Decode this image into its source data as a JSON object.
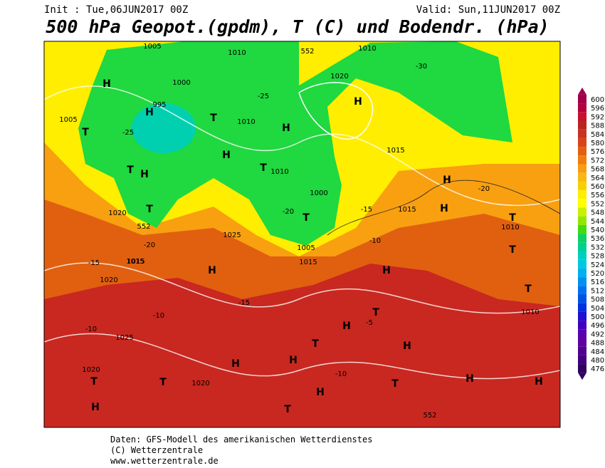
{
  "header": {
    "init": "Init : Tue,06JUN2017 00Z",
    "valid": "Valid: Sun,11JUN2017 00Z",
    "title": "500 hPa Geopot.(gpdm), T (C) und Bodendr. (hPa)"
  },
  "footer": [
    "Daten: GFS-Modell des amerikanischen Wetterdienstes",
    "(C) Wetterzentrale",
    "www.wetterzentrale.de"
  ],
  "colorbar": {
    "levels": [
      600,
      596,
      592,
      588,
      584,
      580,
      576,
      572,
      568,
      564,
      560,
      556,
      552,
      548,
      544,
      540,
      536,
      532,
      528,
      524,
      520,
      516,
      512,
      508,
      504,
      500,
      496,
      492,
      488,
      484,
      480,
      476
    ],
    "colors": [
      "#a0004a",
      "#b4003a",
      "#c81030",
      "#b82420",
      "#c83220",
      "#d84418",
      "#e06010",
      "#f07c10",
      "#f89c10",
      "#f8b810",
      "#f8d000",
      "#ffee00",
      "#ffff00",
      "#c8f000",
      "#90e800",
      "#40dc10",
      "#10d060",
      "#00d090",
      "#00d0c0",
      "#00c8e0",
      "#00b0f0",
      "#0090f0",
      "#0070f0",
      "#0050e8",
      "#0030e0",
      "#2010d0",
      "#4000c0",
      "#5800b0",
      "#6000a0",
      "#500090",
      "#400080",
      "#300060"
    ]
  },
  "map": {
    "labels": [
      "H",
      "H",
      "T",
      "H",
      "T",
      "T",
      "H",
      "H",
      "T",
      "T",
      "H",
      "T",
      "H",
      "H",
      "T",
      "T",
      "H",
      "H",
      "T",
      "H",
      "H",
      "T",
      "H",
      "H",
      "T",
      "H",
      "T",
      "T",
      "H",
      "T",
      "H",
      "T",
      "H",
      "1005",
      "1010",
      "1000",
      "995",
      "1005",
      "1010",
      "1020",
      "1015",
      "1025",
      "1015",
      "1020",
      "1025",
      "1020",
      "1020",
      "1020",
      "1010",
      "1015",
      "1015",
      "1015",
      "1010",
      "1000",
      "1010",
      "1005",
      "1010",
      "-25",
      "-20",
      "-15",
      "-10",
      "-15",
      "-10",
      "-5",
      "-10",
      "-20",
      "-25",
      "-30",
      "-20",
      "-15",
      "-10",
      "552",
      "552",
      "552"
    ]
  }
}
